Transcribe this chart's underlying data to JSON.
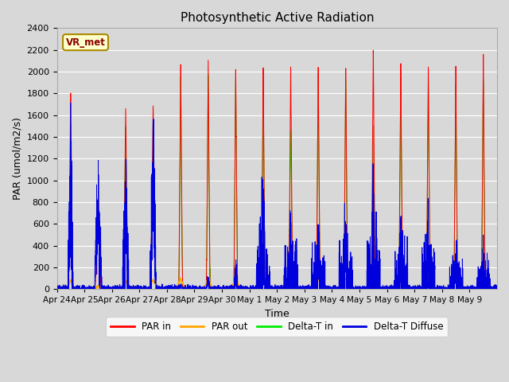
{
  "title": "Photosynthetic Active Radiation",
  "xlabel": "Time",
  "ylabel": "PAR (umol/m2/s)",
  "ylim": [
    0,
    2400
  ],
  "yticks": [
    0,
    200,
    400,
    600,
    800,
    1000,
    1200,
    1400,
    1600,
    1800,
    2000,
    2200,
    2400
  ],
  "plot_bg_color": "#d8d8d8",
  "fig_bg_color": "#d8d8d8",
  "grid_color": "#ffffff",
  "colors": {
    "PAR_in": "#ff0000",
    "PAR_out": "#ffa500",
    "Delta_T_in": "#00ee00",
    "Delta_T_Diffuse": "#0000dd"
  },
  "legend_labels": [
    "PAR in",
    "PAR out",
    "Delta-T in",
    "Delta-T Diffuse"
  ],
  "annotation_text": "VR_met",
  "x_tick_labels": [
    "Apr 24",
    "Apr 25",
    "Apr 26",
    "Apr 27",
    "Apr 28",
    "Apr 29",
    "Apr 30",
    "May 1",
    "May 2",
    "May 3",
    "May 4",
    "May 5",
    "May 6",
    "May 7",
    "May 8",
    "May 9"
  ],
  "num_days": 16,
  "ppd": 288,
  "par_in_peaks": [
    1800,
    800,
    1650,
    1700,
    2150,
    2120,
    2080,
    2070,
    2080,
    2080,
    2100,
    2250,
    2100,
    2060,
    2070,
    2150
  ],
  "par_out_peaks": [
    90,
    30,
    80,
    90,
    100,
    100,
    100,
    100,
    100,
    100,
    100,
    100,
    100,
    100,
    100,
    100
  ],
  "dtin_peaks": [
    1520,
    650,
    1480,
    1300,
    2000,
    2000,
    2000,
    1980,
    1490,
    1980,
    1960,
    1540,
    1980,
    1920,
    1920,
    1960
  ],
  "dtdiff_peaks": [
    1050,
    700,
    900,
    1100,
    50,
    120,
    200,
    800,
    450,
    420,
    520,
    630,
    450,
    490,
    280,
    280
  ],
  "par_in_width": [
    0.08,
    0.12,
    0.09,
    0.1,
    0.07,
    0.07,
    0.07,
    0.07,
    0.07,
    0.07,
    0.07,
    0.07,
    0.07,
    0.07,
    0.07,
    0.07
  ],
  "dtin_width": [
    0.09,
    0.13,
    0.1,
    0.11,
    0.07,
    0.07,
    0.07,
    0.07,
    0.08,
    0.07,
    0.07,
    0.08,
    0.07,
    0.07,
    0.07,
    0.07
  ],
  "dtdiff_width": [
    0.09,
    0.13,
    0.11,
    0.11,
    0.06,
    0.06,
    0.06,
    0.06,
    0.07,
    0.07,
    0.07,
    0.07,
    0.07,
    0.07,
    0.07,
    0.07
  ]
}
